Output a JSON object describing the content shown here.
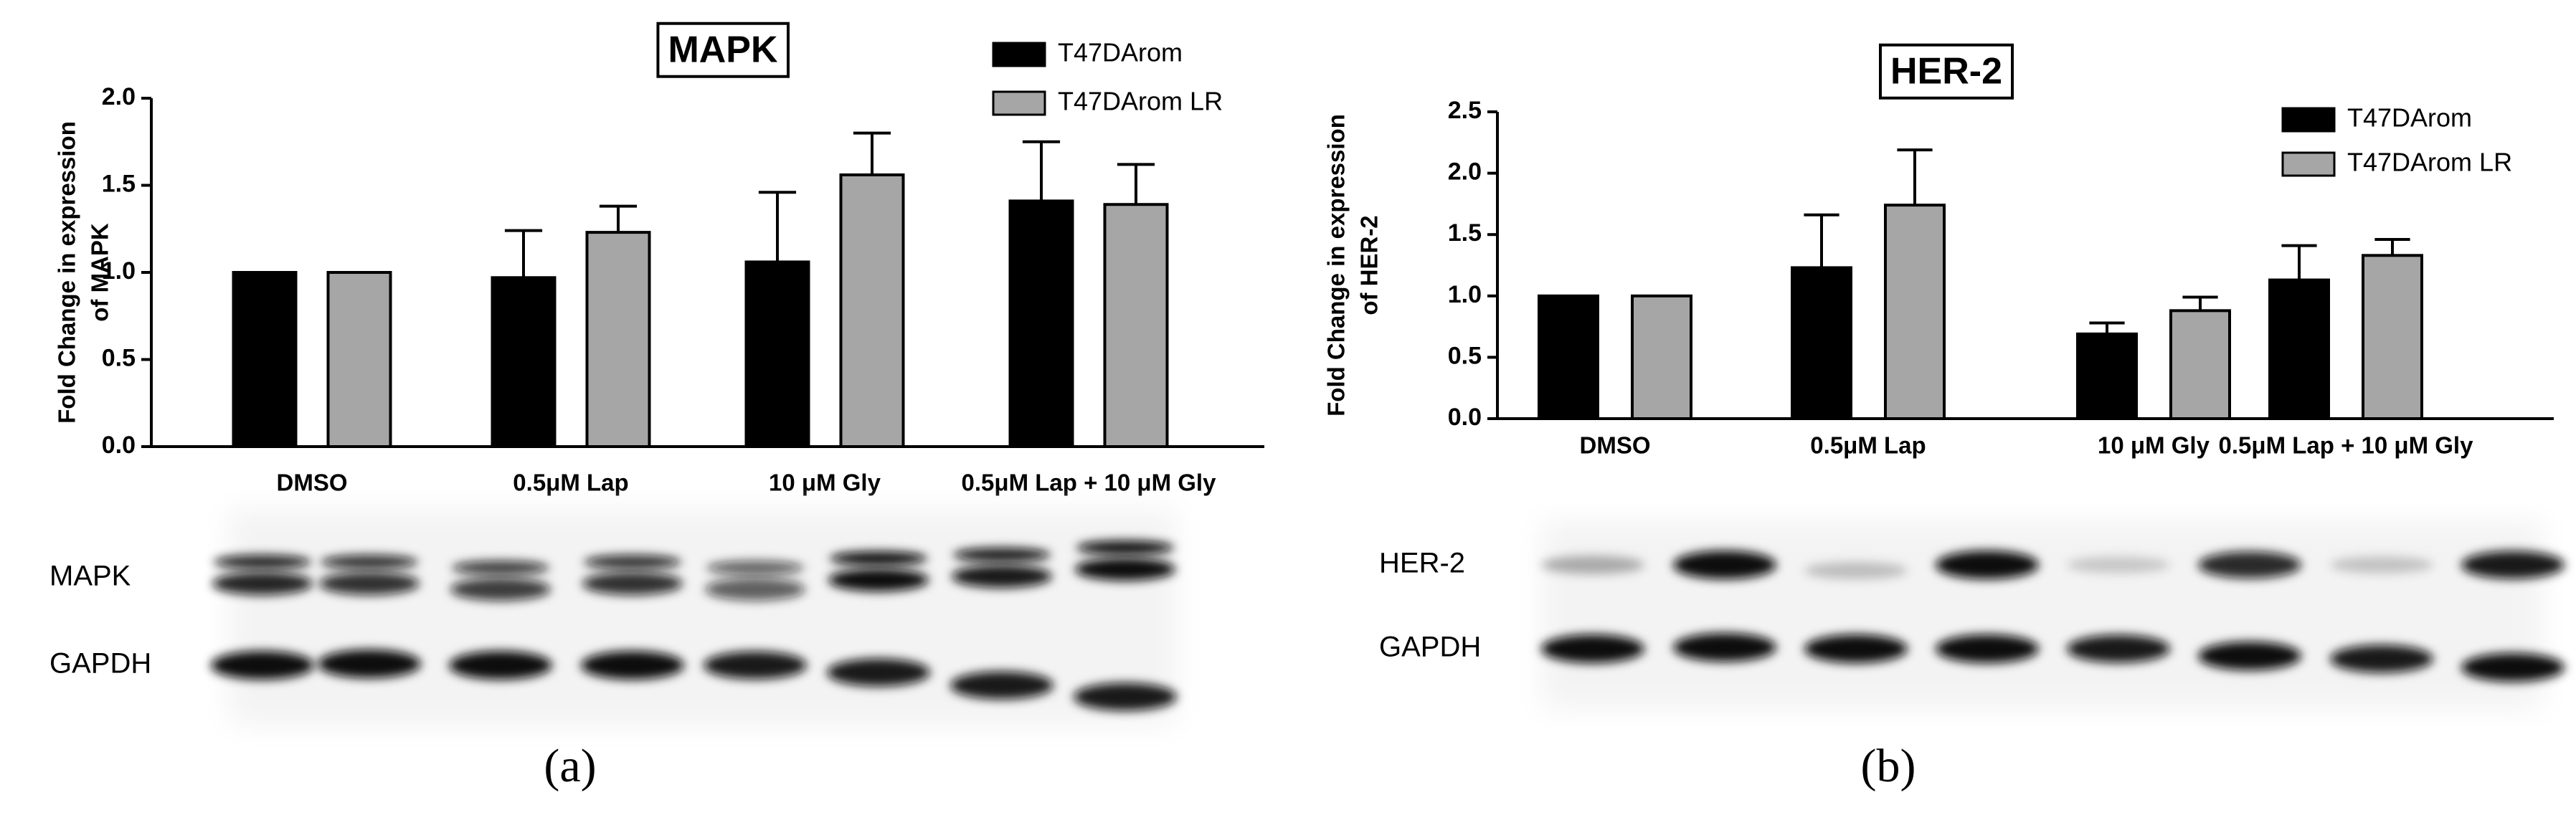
{
  "chart_data": [
    {
      "type": "bar",
      "title": "MAPK",
      "y_label": [
        "Fold Change in expression",
        "of  MAPK"
      ],
      "categories": [
        "DMSO",
        "0.5μM Lap",
        "10 μM Gly",
        "0.5μM Lap + 10 μM Gly"
      ],
      "series": [
        {
          "name": "T47DArom",
          "color": "#000000",
          "values": [
            1.0,
            0.97,
            1.06,
            1.41
          ],
          "errors": [
            0,
            0.27,
            0.4,
            0.34
          ]
        },
        {
          "name": "T47DArom LR",
          "color": "#a6a6a6",
          "values": [
            1.0,
            1.23,
            1.56,
            1.39
          ],
          "errors": [
            0,
            0.15,
            0.24,
            0.23
          ]
        }
      ],
      "ylim": [
        0,
        2.0
      ],
      "yticks": [
        {
          "value": 0,
          "label": "0.0"
        },
        0.5,
        {
          "value": 1.0,
          "label": "1.0"
        },
        1.5,
        {
          "value": 2.0,
          "label": "2.0"
        }
      ],
      "legend": "upper right"
    },
    {
      "type": "bar",
      "title": "HER-2",
      "y_label": [
        "Fold Change in expression",
        "of  HER-2"
      ],
      "categories": [
        "DMSO",
        "0.5μM Lap",
        "10 μM Gly",
        "0.5μM Lap + 10 μM Gly"
      ],
      "series": [
        {
          "name": "T47DArom",
          "color": "#000000",
          "values": [
            1.0,
            1.23,
            0.69,
            1.13
          ],
          "errors": [
            0,
            0.43,
            0.09,
            0.28
          ]
        },
        {
          "name": "T47DArom LR",
          "color": "#a6a6a6",
          "values": [
            1.0,
            1.74,
            0.88,
            1.33
          ],
          "errors": [
            0,
            0.45,
            0.11,
            0.13
          ]
        }
      ],
      "ylim": [
        0,
        2.5
      ],
      "yticks": [
        {
          "value": 0,
          "label": "0.0"
        },
        0.5,
        {
          "value": 1.0,
          "label": "1.0"
        },
        1.5,
        {
          "value": 2.0,
          "label": "2.0"
        },
        2.5
      ],
      "legend": "upper right"
    }
  ],
  "panels": [
    {
      "label": "(a)",
      "blot_rows": [
        "MAPK",
        "GAPDH"
      ]
    },
    {
      "label": "(b)",
      "blot_rows": [
        "HER-2",
        "GAPDH"
      ]
    }
  ]
}
